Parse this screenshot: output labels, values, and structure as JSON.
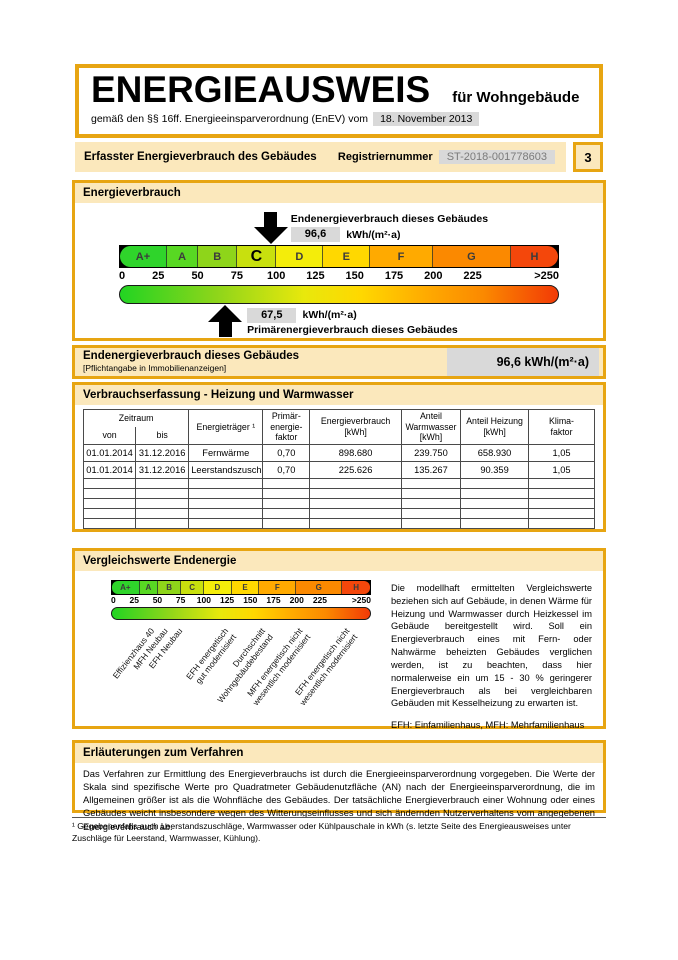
{
  "header": {
    "title": "ENERGIEAUSWEIS",
    "building_type": "für Wohngebäude",
    "law_text": "gemäß den §§ 16ff. Energieeinsparverordnung (EnEV) vom",
    "law_date": "18. November 2013",
    "section_label": "Erfasster Energieverbrauch des Gebäudes",
    "registration_label": "Registriernummer",
    "registration_number": "ST-2018-001778603",
    "page_number": "3"
  },
  "colors": {
    "gold": "#e7a512",
    "strip_bg": "#fbe8bc",
    "field_bg": "#d9d9d9"
  },
  "energy_scale": {
    "section_title": "Energieverbrauch",
    "axis_max_units": 280,
    "bands": [
      {
        "label": "A+",
        "from": 0,
        "to": 30,
        "color": "#2fd42b"
      },
      {
        "label": "A",
        "from": 30,
        "to": 50,
        "color": "#58d823"
      },
      {
        "label": "B",
        "from": 50,
        "to": 75,
        "color": "#8ed51a"
      },
      {
        "label": "C",
        "from": 75,
        "to": 100,
        "color": "#c8e00e"
      },
      {
        "label": "D",
        "from": 100,
        "to": 130,
        "color": "#f4ed0a"
      },
      {
        "label": "E",
        "from": 130,
        "to": 160,
        "color": "#ffd800"
      },
      {
        "label": "F",
        "from": 160,
        "to": 200,
        "color": "#ffaa00"
      },
      {
        "label": "G",
        "from": 200,
        "to": 250,
        "color": "#fb8900"
      },
      {
        "label": "H",
        "from": 250,
        "to": 280,
        "color": "#f4470b"
      }
    ],
    "ticks": [
      {
        "label": "0",
        "value": 0
      },
      {
        "label": "25",
        "value": 25
      },
      {
        "label": "50",
        "value": 50
      },
      {
        "label": "75",
        "value": 75
      },
      {
        "label": "100",
        "value": 100
      },
      {
        "label": "125",
        "value": 125
      },
      {
        "label": "150",
        "value": 150
      },
      {
        "label": "175",
        "value": 175
      },
      {
        "label": "200",
        "value": 200
      },
      {
        "label": "225",
        "value": 225
      },
      {
        "label": ">250",
        "value": 250
      }
    ],
    "end_energy": {
      "label": "Endenergieverbrauch dieses Gebäudes",
      "value": "96,6",
      "unit": "kWh/(m²·a)",
      "numeric": 96.6
    },
    "primary_energy": {
      "label": "Primärenergieverbrauch dieses Gebäudes",
      "value": "67,5",
      "unit": "kWh/(m²·a)",
      "numeric": 67.5
    }
  },
  "end_energy_section": {
    "title": "Endenergieverbrauch dieses Gebäudes",
    "note": "[Pflichtangabe in Immobilienanzeigen]",
    "value": "96,6 kWh/(m²·a)"
  },
  "consumption_table": {
    "section_title": "Verbrauchserfassung - Heizung und Warmwasser",
    "headers": {
      "zeitraum": "Zeitraum",
      "von": "von",
      "bis": "bis",
      "energietraeger": "Energieträger ¹",
      "pef": "Primär-\nenergie-\nfaktor",
      "verbrauch": "Energieverbrauch\n[kWh]",
      "warmwasser": "Anteil\nWarmwasser\n[kWh]",
      "heizung": "Anteil Heizung\n[kWh]",
      "klima": "Klima-\nfaktor"
    },
    "rows": [
      [
        "01.01.2014",
        "31.12.2016",
        "Fernwärme",
        "0,70",
        "898.680",
        "239.750",
        "658.930",
        "1,05"
      ],
      [
        "01.01.2014",
        "31.12.2016",
        "Leerstandszuschlag",
        "0,70",
        "225.626",
        "135.267",
        "90.359",
        "1,05"
      ]
    ],
    "empty_row_count": 5
  },
  "comparison": {
    "section_title": "Vergleichswerte Endenergie",
    "markers": [
      {
        "lines": [
          "Effizienzhaus 40"
        ],
        "value": 40
      },
      {
        "lines": [
          "MFH Neubau"
        ],
        "value": 55
      },
      {
        "lines": [
          "EFH Neubau"
        ],
        "value": 70
      },
      {
        "lines": [
          "EFH energetisch",
          "gut modernisiert"
        ],
        "value": 120
      },
      {
        "lines": [
          "Durchschnitt",
          "Wohngebäudebestand"
        ],
        "value": 160
      },
      {
        "lines": [
          "MFH energetisch nicht",
          "wesentlich modernisiert"
        ],
        "value": 200
      },
      {
        "lines": [
          "EFH energetisch nicht",
          "wesentlich modernisiert"
        ],
        "value": 250
      }
    ],
    "paragraph": "Die modellhaft ermittelten Vergleichswerte beziehen sich auf Gebäude, in denen Wärme für Heizung und Warmwasser durch Heizkessel im Gebäude bereitgestellt wird. Soll ein Energieverbrauch eines mit Fern- oder Nahwärme beheizten Gebäudes verglichen werden, ist zu beachten, dass hier normalerweise ein um 15 - 30 % geringerer Energieverbrauch als bei vergleichbaren Gebäuden mit Kesselheizung zu erwarten ist.",
    "abbreviations": "EFH: Einfamilienhaus, MFH: Mehrfamilienhaus"
  },
  "explanation": {
    "section_title": "Erläuterungen zum Verfahren",
    "paragraph": "Das Verfahren zur Ermittlung des Energieverbrauchs ist durch die Energieeinsparverordnung vorgegeben. Die Werte der Skala sind spezifische Werte pro Quadratmeter Gebäudenutzfläche (AN) nach der Energieeinsparverordnung, die im Allgemeinen größer ist als die Wohnfläche des Gebäudes. Der tatsächliche Energieverbrauch einer Wohnung oder eines Gebäudes weicht insbesondere wegen des Witterungseinflusses und sich ändernden Nutzerverhaltens vom angegebenen Energieverbrauch ab."
  },
  "footnote": "¹ Gegebenenfalls auch Leerstandszuschläge, Warmwasser oder Kühlpauschale in kWh (s. letzte Seite des Energieausweises unter Zuschläge für Leerstand, Warmwasser, Kühlung)."
}
